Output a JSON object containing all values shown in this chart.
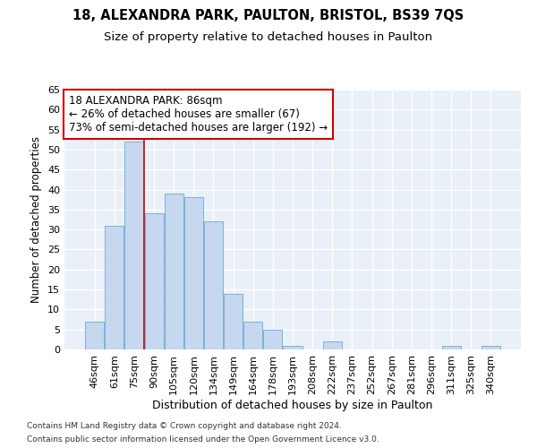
{
  "title_line1": "18, ALEXANDRA PARK, PAULTON, BRISTOL, BS39 7QS",
  "title_line2": "Size of property relative to detached houses in Paulton",
  "xlabel": "Distribution of detached houses by size in Paulton",
  "ylabel": "Number of detached properties",
  "bar_labels": [
    "46sqm",
    "61sqm",
    "75sqm",
    "90sqm",
    "105sqm",
    "120sqm",
    "134sqm",
    "149sqm",
    "164sqm",
    "178sqm",
    "193sqm",
    "208sqm",
    "222sqm",
    "237sqm",
    "252sqm",
    "267sqm",
    "281sqm",
    "296sqm",
    "311sqm",
    "325sqm",
    "340sqm"
  ],
  "bar_values": [
    7,
    31,
    52,
    34,
    39,
    38,
    32,
    14,
    7,
    5,
    1,
    0,
    2,
    0,
    0,
    0,
    0,
    0,
    1,
    0,
    1
  ],
  "bar_color": "#c5d8ef",
  "bar_edge_color": "#6fa8d4",
  "background_color": "#eaf0f8",
  "grid_color": "#ffffff",
  "annotation_box_text": "18 ALEXANDRA PARK: 86sqm\n← 26% of detached houses are smaller (67)\n73% of semi-detached houses are larger (192) →",
  "annotation_box_edge_color": "#cc0000",
  "vline_x": 2.5,
  "vline_color": "#cc0000",
  "ylim": [
    0,
    65
  ],
  "yticks": [
    0,
    5,
    10,
    15,
    20,
    25,
    30,
    35,
    40,
    45,
    50,
    55,
    60,
    65
  ],
  "footer_line1": "Contains HM Land Registry data © Crown copyright and database right 2024.",
  "footer_line2": "Contains public sector information licensed under the Open Government Licence v3.0.",
  "title_fontsize": 10.5,
  "subtitle_fontsize": 9.5,
  "ylabel_fontsize": 8.5,
  "xlabel_fontsize": 9,
  "tick_fontsize": 8,
  "annotation_fontsize": 8.5,
  "footer_fontsize": 6.5
}
